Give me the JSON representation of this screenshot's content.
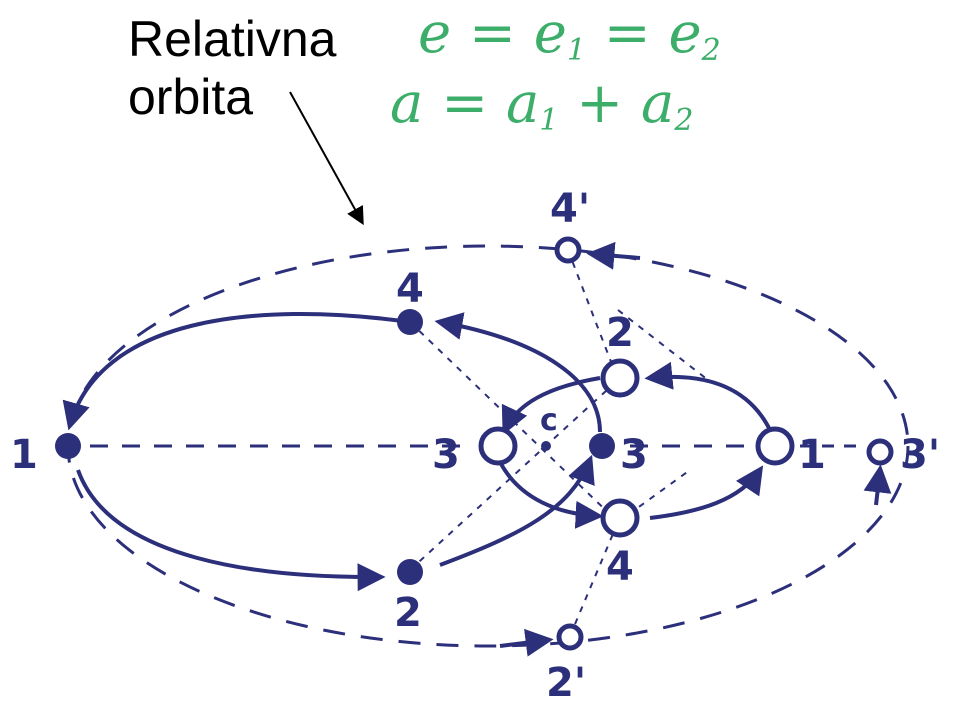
{
  "annotation": {
    "line1": "Relativna",
    "line2": "orbita"
  },
  "equations": {
    "eq1": {
      "a": "e",
      "eq_a": "=",
      "b": "e",
      "b_sub": "1",
      "eq_b": "=",
      "c": "e",
      "c_sub": "2"
    },
    "eq2": {
      "a": "a",
      "eq_a": "=",
      "b": "a",
      "b_sub": "1",
      "plus": "+",
      "c": "a",
      "c_sub": "2"
    }
  },
  "points": {
    "body1": [
      "1",
      "2",
      "3",
      "4"
    ],
    "body2": [
      "1",
      "2",
      "3",
      "4"
    ],
    "relative": [
      "2'",
      "3'",
      "4'"
    ],
    "center": "c"
  },
  "colors": {
    "ink": "#2c2f7a",
    "equation": "#3cae6a",
    "annotation": "#000000"
  }
}
